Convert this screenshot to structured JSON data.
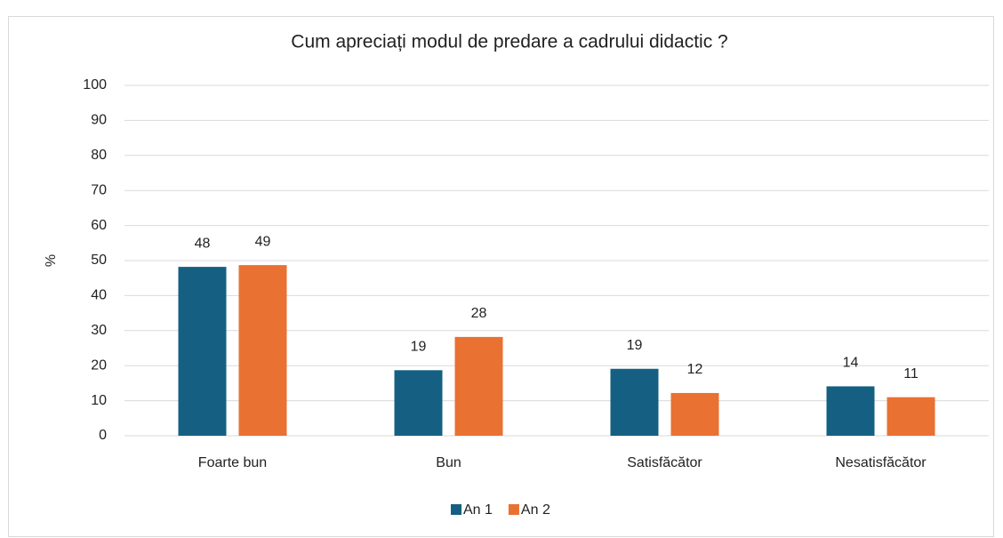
{
  "chart_data": {
    "type": "bar",
    "title": "Cum apreciați modul de predare a cadrului didactic ?",
    "y_label": "%",
    "categories": [
      "Foarte bun",
      "Bun",
      "Satisfăcător",
      "Nesatisfăcător"
    ],
    "series": [
      {
        "name": "An 1",
        "color": "#156082",
        "values": [
          48.2,
          18.7,
          19.1,
          14.1
        ],
        "value_labels": [
          "48",
          "19",
          "19",
          "14"
        ]
      },
      {
        "name": "An 2",
        "color": "#e97132",
        "values": [
          48.7,
          28.2,
          12.2,
          11.0
        ],
        "value_labels": [
          "49",
          "28",
          "12",
          "11"
        ]
      }
    ],
    "ylim": [
      0,
      100
    ],
    "yticks": [
      0,
      10,
      20,
      30,
      40,
      50,
      60,
      70,
      80,
      90,
      100
    ],
    "grid": true,
    "legend": "bottom"
  }
}
